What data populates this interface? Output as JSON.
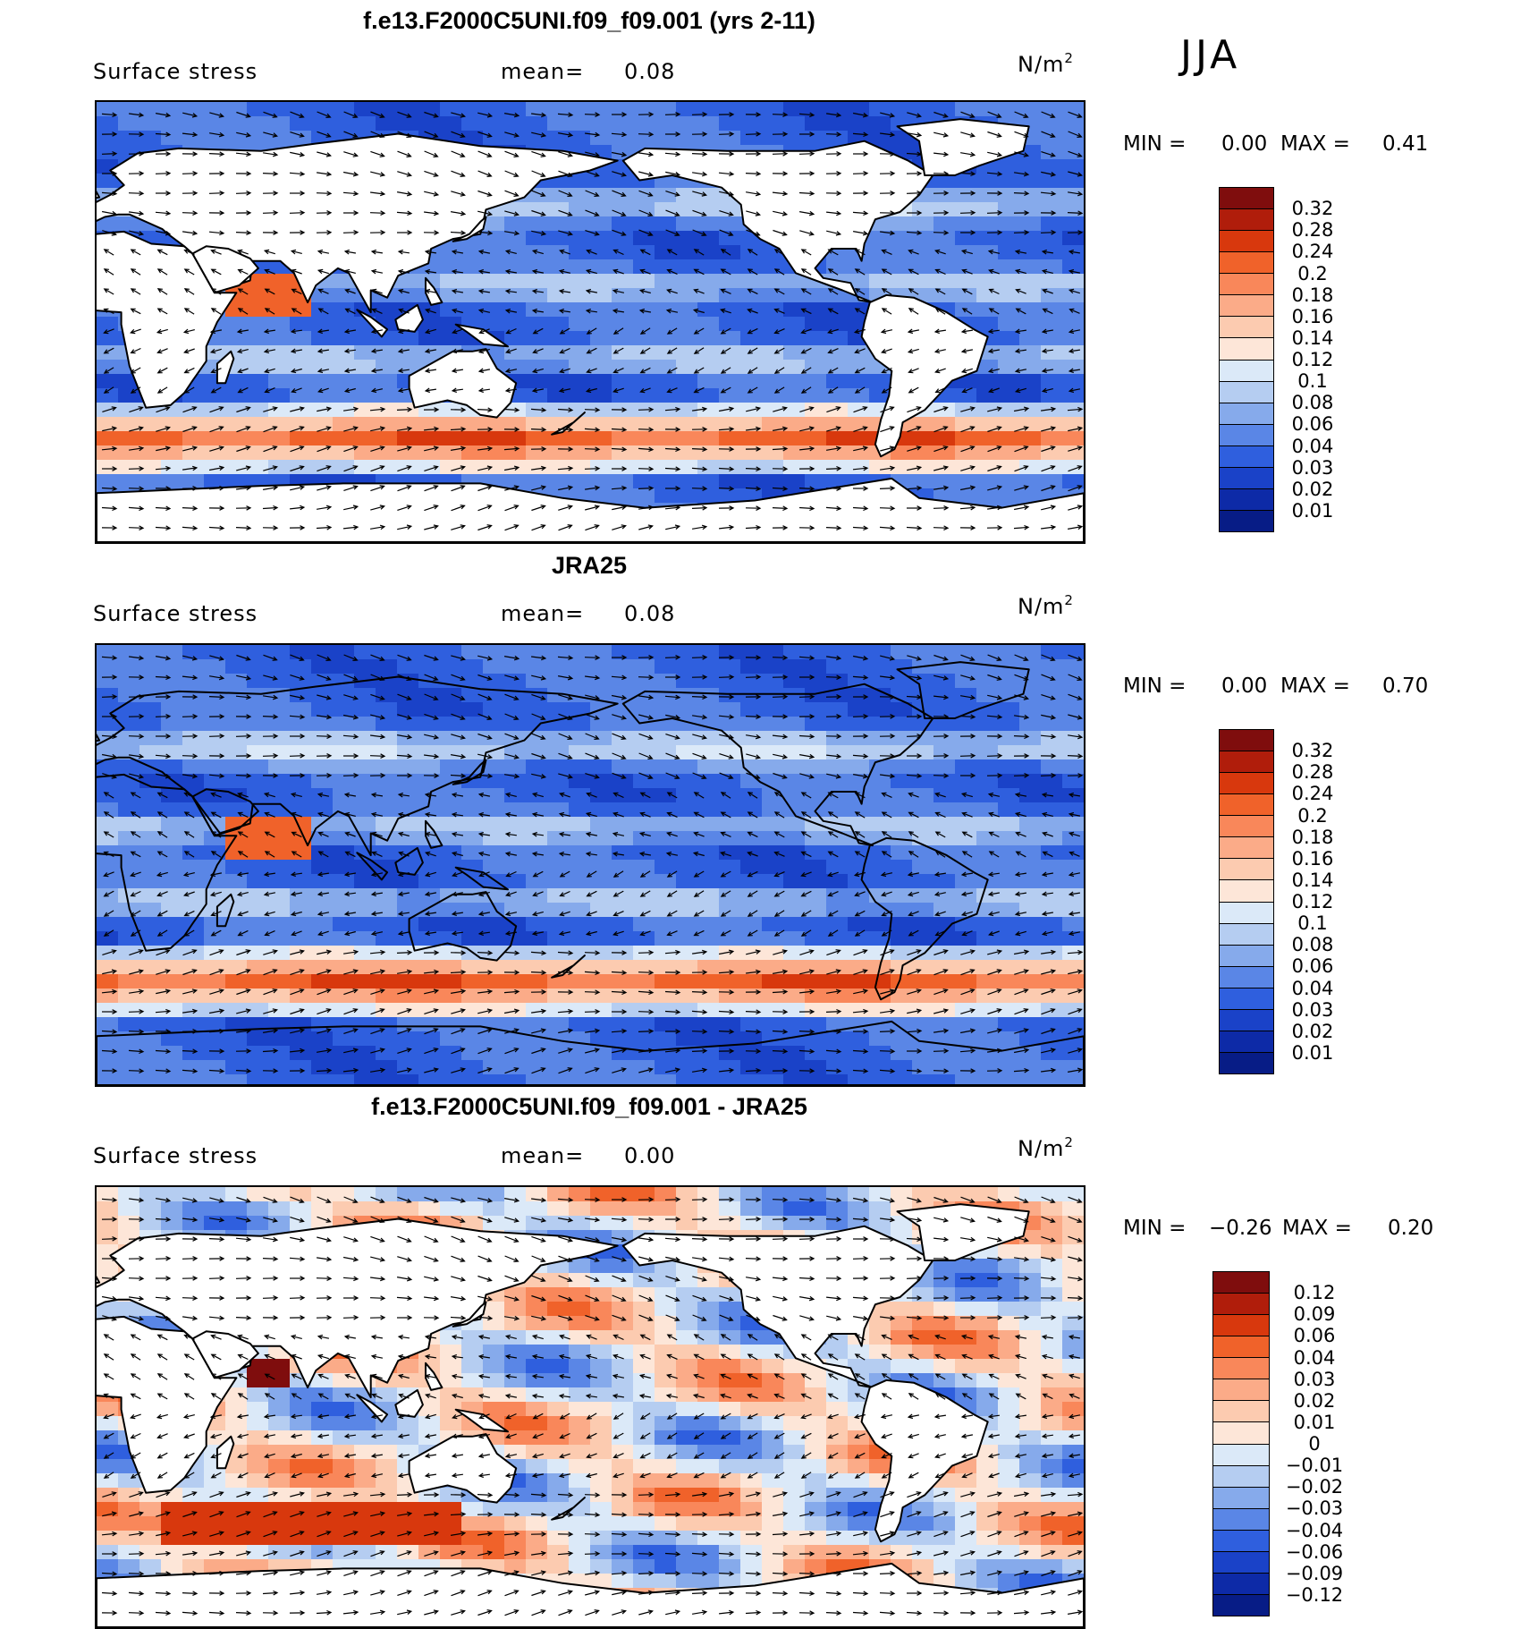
{
  "season": "JJA",
  "panels": [
    {
      "title": "f.e13.F2000C5UNI.f09_f09.001 (yrs 2-11)",
      "variable": "Surface stress",
      "mean_label": "mean=",
      "mean_value": "0.08",
      "units": "N/m",
      "units_sup": "2",
      "min_label": "MIN =",
      "min_value": "0.00",
      "max_label": "MAX =",
      "max_value": "0.41",
      "kind": "abs"
    },
    {
      "title": "JRA25",
      "variable": "Surface stress",
      "mean_label": "mean=",
      "mean_value": "0.08",
      "units": "N/m",
      "units_sup": "2",
      "min_label": "MIN =",
      "min_value": "0.00",
      "max_label": "MAX =",
      "max_value": "0.70",
      "kind": "abs"
    },
    {
      "title": "f.e13.F2000C5UNI.f09_f09.001 - JRA25",
      "variable": "Surface stress",
      "mean_label": "mean=",
      "mean_value": "0.00",
      "units": "N/m",
      "units_sup": "2",
      "min_label": "MIN =",
      "min_value": "−0.26",
      "max_label": "MAX =",
      "max_value": "0.20",
      "kind": "diff"
    }
  ],
  "colorbars": {
    "abs": {
      "ticks": [
        "0.32",
        "0.28",
        "0.24",
        "0.2",
        "0.18",
        "0.16",
        "0.14",
        "0.12",
        "0.1",
        "0.08",
        "0.06",
        "0.04",
        "0.03",
        "0.02",
        "0.01"
      ],
      "colors": [
        "#7f0d0d",
        "#b01d0b",
        "#d8380d",
        "#f0622a",
        "#f9875a",
        "#fbab88",
        "#fccbb0",
        "#fde6d8",
        "#dbe9f8",
        "#b5cdf1",
        "#86aaeb",
        "#5a86e6",
        "#2f5fde",
        "#1a42c8",
        "#0d2aa7",
        "#071c86"
      ]
    },
    "diff": {
      "ticks": [
        "0.12",
        "0.09",
        "0.06",
        "0.04",
        "0.03",
        "0.02",
        "0.01",
        "0",
        "−0.01",
        "−0.02",
        "−0.03",
        "−0.04",
        "−0.06",
        "−0.09",
        "−0.12"
      ],
      "colors": [
        "#7f0d0d",
        "#b01d0b",
        "#d8380d",
        "#f0622a",
        "#f9875a",
        "#fbab88",
        "#fccbb0",
        "#fde6d8",
        "#dbe9f8",
        "#b5cdf1",
        "#86aaeb",
        "#5a86e6",
        "#2f5fde",
        "#1a42c8",
        "#0d2aa7",
        "#071c86"
      ]
    }
  },
  "chart_data": [
    {
      "type": "heatmap",
      "title": "f.e13.F2000C5UNI.f09_f09.001 (yrs 2-11)",
      "subtitle": "Surface stress",
      "units": "N/m2",
      "mean": 0.08,
      "min": 0.0,
      "max": 0.41,
      "levels": [
        0.01,
        0.02,
        0.03,
        0.04,
        0.06,
        0.08,
        0.1,
        0.12,
        0.14,
        0.16,
        0.18,
        0.2,
        0.24,
        0.28,
        0.32
      ],
      "overlay": "wind stress vectors (arrows)",
      "map": "global, land masked white"
    },
    {
      "type": "heatmap",
      "title": "JRA25",
      "subtitle": "Surface stress",
      "units": "N/m2",
      "mean": 0.08,
      "min": 0.0,
      "max": 0.7,
      "levels": [
        0.01,
        0.02,
        0.03,
        0.04,
        0.06,
        0.08,
        0.1,
        0.12,
        0.14,
        0.16,
        0.18,
        0.2,
        0.24,
        0.28,
        0.32
      ],
      "overlay": "wind stress vectors (arrows)",
      "map": "global, land and ocean"
    },
    {
      "type": "heatmap",
      "title": "f.e13.F2000C5UNI.f09_f09.001 - JRA25",
      "subtitle": "Surface stress",
      "units": "N/m2",
      "mean": 0.0,
      "min": -0.26,
      "max": 0.2,
      "levels": [
        -0.12,
        -0.09,
        -0.06,
        -0.04,
        -0.03,
        -0.02,
        -0.01,
        0,
        0.01,
        0.02,
        0.03,
        0.04,
        0.06,
        0.09,
        0.12
      ],
      "overlay": "difference vectors (arrows)",
      "map": "global, land masked white"
    }
  ]
}
